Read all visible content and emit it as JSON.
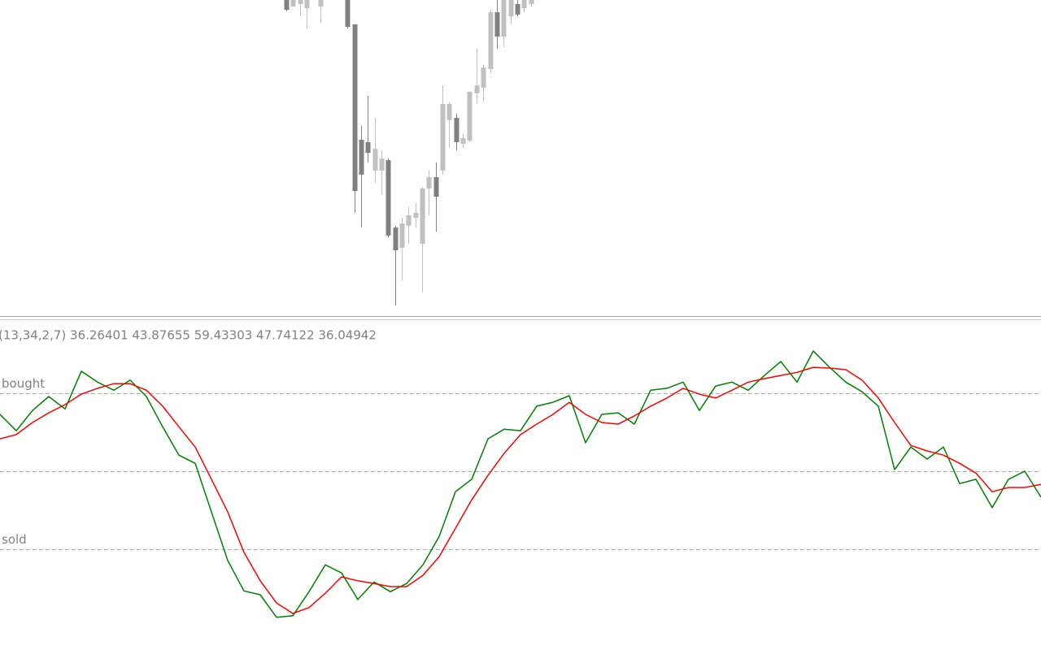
{
  "chart_data": [
    {
      "type": "candlestick",
      "up_color": "#c0c0c0",
      "down_color": "#808080",
      "ylim": [
        0,
        100
      ],
      "open": [
        100,
        97.9,
        98.7,
        97.4,
        null,
        97.9,
        null,
        null,
        null,
        100,
        92.3,
        55.7,
        54.9,
        45.9,
        45.9,
        49.2,
        27.8,
        21.4,
        28.4,
        30.9,
        22.7,
        40.2,
        43.8,
        45.9,
        61.9,
        62.6,
        54.4,
        55.4,
        70.4,
        72.2,
        78.1,
        96.1,
        88.4,
        94.8,
        98.7,
        97.4,
        98.7
      ],
      "high": [
        100,
        100,
        100,
        100,
        null,
        100,
        null,
        null,
        null,
        100,
        92.3,
        60.1,
        69.6,
        62.6,
        52.3,
        49.7,
        28.4,
        30.9,
        34.3,
        35.6,
        40.7,
        45.9,
        48.5,
        72.9,
        67.8,
        63.9,
        57.5,
        71.1,
        84.5,
        79.4,
        96.9,
        100,
        100,
        100,
        100,
        100,
        100
      ],
      "low": [
        96.4,
        97.9,
        94.8,
        90.9,
        null,
        92.8,
        null,
        null,
        null,
        90.9,
        32.5,
        27.8,
        48.5,
        42.0,
        38.1,
        24.7,
        3.1,
        11.1,
        22.7,
        27.8,
        7.2,
        31.7,
        26.5,
        44.6,
        53.1,
        52.3,
        53.1,
        54.9,
        67.0,
        67.8,
        76.8,
        84.5,
        85.1,
        92.3,
        94.8,
        96.1,
        97.9
      ],
      "close": [
        96.9,
        100,
        100,
        100,
        null,
        100,
        null,
        null,
        null,
        91.5,
        39.4,
        44.6,
        51.5,
        52.8,
        49.7,
        25.3,
        20.6,
        29.1,
        31.7,
        32.5,
        40.2,
        43.8,
        37.6,
        67.0,
        67.0,
        54.9,
        56.2,
        70.9,
        72.9,
        78.6,
        96.1,
        88.4,
        100,
        100,
        95.4,
        100,
        100
      ]
    },
    {
      "type": "line",
      "title": "(13,34,2,7) 36.26401 43.87655 59.43303 47.74122 36.04942",
      "ylim": [
        4,
        88
      ],
      "levels": [
        {
          "label": "bought",
          "value": 70
        },
        {
          "value": 50
        },
        {
          "label": "sold",
          "value": 30
        }
      ],
      "level_color": "#b0b0b0",
      "series": [
        {
          "color": "#008000",
          "values": [
            64.6,
            60.4,
            65.6,
            69.2,
            66.0,
            75.7,
            72.9,
            70.8,
            73.4,
            69.2,
            61.4,
            54.1,
            52.0,
            39.5,
            27.0,
            19.2,
            18.2,
            12.4,
            12.8,
            19.0,
            25.9,
            23.8,
            17.0,
            21.5,
            19.0,
            21.1,
            25.9,
            33.2,
            44.7,
            47.9,
            58.3,
            60.8,
            60.4,
            66.7,
            67.7,
            69.4,
            57.3,
            64.6,
            65.0,
            62.1,
            70.8,
            71.3,
            72.9,
            65.6,
            71.9,
            72.9,
            70.8,
            74.6,
            78.2,
            72.9,
            80.9,
            76.7,
            72.9,
            70.4,
            66.7,
            50.4,
            56.2,
            53.1,
            56.2,
            46.8,
            47.9,
            40.6,
            47.9,
            50.0,
            43.3
          ]
        },
        {
          "color": "#ff0000",
          "values": [
            58.3,
            59.4,
            62.5,
            65.0,
            67.1,
            69.8,
            71.3,
            72.5,
            72.5,
            70.8,
            66.7,
            61.4,
            56.2,
            47.9,
            39.5,
            29.1,
            21.8,
            16.1,
            13.4,
            14.9,
            18.6,
            22.8,
            21.8,
            21.1,
            20.3,
            20.3,
            23.2,
            28.0,
            35.3,
            42.6,
            48.9,
            54.6,
            59.4,
            62.1,
            64.6,
            67.7,
            64.6,
            62.5,
            62.1,
            64.2,
            66.7,
            68.8,
            71.3,
            69.8,
            68.8,
            70.8,
            72.9,
            73.8,
            74.6,
            75.4,
            76.7,
            76.5,
            76.1,
            73.4,
            68.8,
            62.5,
            56.6,
            55.2,
            54.1,
            52.0,
            49.5,
            44.7,
            45.8,
            45.8,
            46.6
          ]
        }
      ]
    }
  ]
}
